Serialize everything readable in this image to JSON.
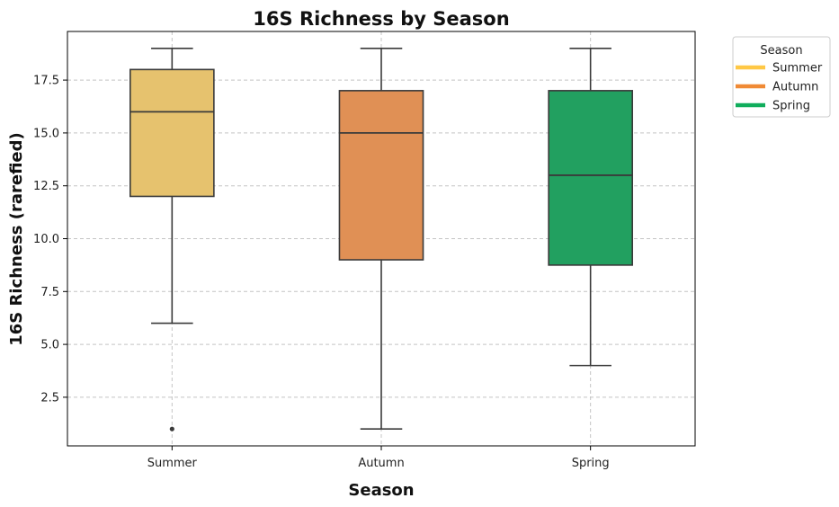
{
  "chart_data": {
    "type": "box",
    "title": "16S Richness by Season",
    "xlabel": "Season",
    "ylabel": "16S Richness (rarefied)",
    "categories": [
      "Summer",
      "Autumn",
      "Spring"
    ],
    "ylim": [
      0.2,
      19.8
    ],
    "yticks": [
      2.5,
      5.0,
      7.5,
      10.0,
      12.5,
      15.0,
      17.5
    ],
    "ytick_labels": [
      "2.5",
      "5.0",
      "7.5",
      "10.0",
      "12.5",
      "15.0",
      "17.5"
    ],
    "grid": true,
    "series": [
      {
        "name": "Summer",
        "color": "#e6c26e",
        "legend_color": "#ffc845",
        "whisker_low": 6,
        "q1": 12,
        "median": 16,
        "q3": 18,
        "whisker_high": 19,
        "outliers": [
          1
        ]
      },
      {
        "name": "Autumn",
        "color": "#e09055",
        "legend_color": "#f08a35",
        "whisker_low": 1,
        "q1": 9,
        "median": 15,
        "q3": 17,
        "whisker_high": 19,
        "outliers": []
      },
      {
        "name": "Spring",
        "color": "#22a060",
        "legend_color": "#10ad5c",
        "whisker_low": 4,
        "q1": 8.75,
        "median": 13,
        "q3": 17,
        "whisker_high": 19,
        "outliers": []
      }
    ],
    "legend": {
      "title": "Season",
      "position": "outside-top-right"
    }
  }
}
